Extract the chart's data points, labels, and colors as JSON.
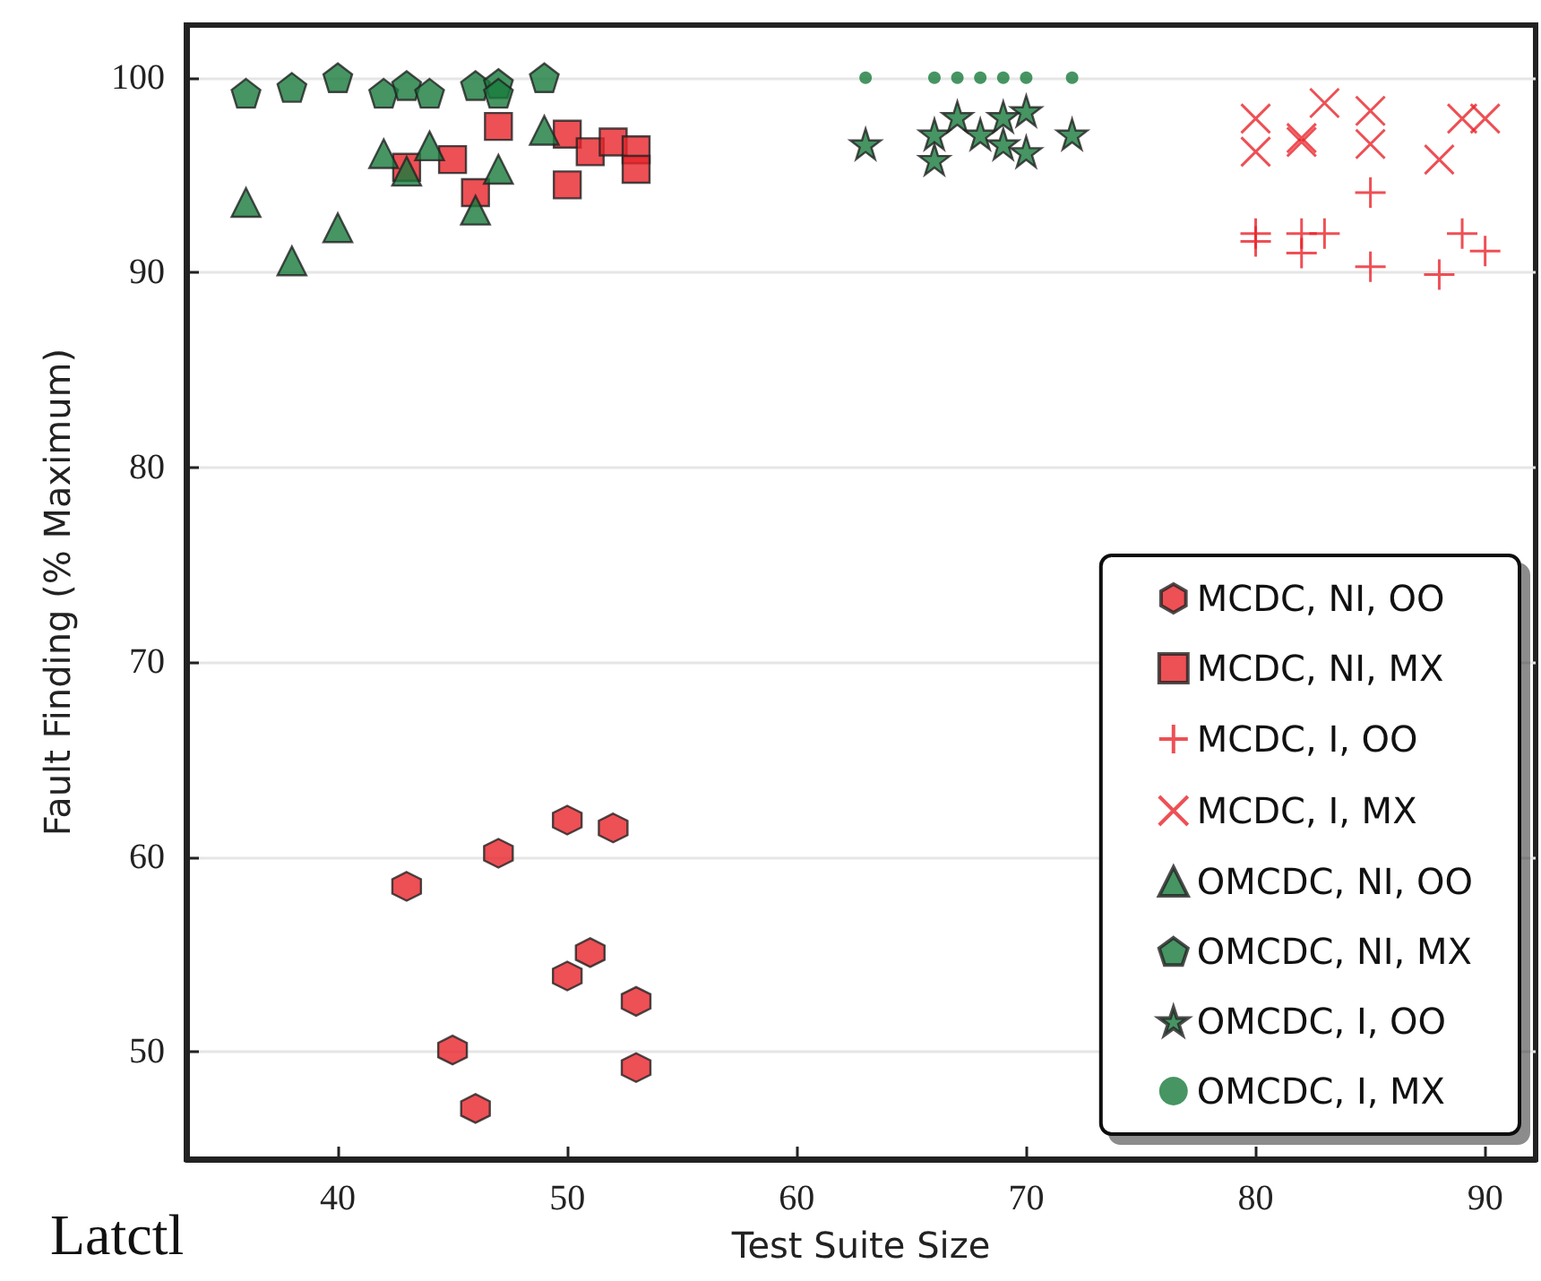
{
  "chart_data": {
    "type": "scatter",
    "xlabel": "Test Suite Size",
    "ylabel": "Fault Finding (% Maximum)",
    "annotations": [
      "Latctl"
    ],
    "xlim": [
      33.4,
      92.2
    ],
    "xticks": [
      40,
      50,
      60,
      70,
      80,
      90
    ],
    "ylim": [
      44.5,
      102.7
    ],
    "yticks": [
      50,
      60,
      70,
      80,
      90,
      100
    ],
    "grid": "y",
    "legend": "bottom right",
    "series": [
      {
        "name": "MCDC, NI, OO",
        "color": "#e8242a",
        "x": [
          43,
          47,
          50,
          52,
          51,
          50,
          53,
          45,
          53,
          46
        ],
        "values": [
          58.5,
          60.2,
          61.9,
          61.5,
          55.1,
          53.9,
          52.6,
          50.1,
          49.2,
          47.1
        ]
      },
      {
        "name": "MCDC, NI, MX",
        "color": "#e8242a",
        "marker": "square",
        "x": [
          43,
          45,
          46,
          47,
          50,
          50,
          51,
          52,
          53,
          53
        ],
        "values": [
          95.4,
          95.8,
          94.1,
          97.5,
          97.1,
          94.5,
          96.2,
          96.7,
          96.3,
          95.3
        ]
      },
      {
        "name": "MCDC, I, OO",
        "color": "#e8242a",
        "marker": "plus",
        "x": [
          80,
          80,
          82,
          82,
          83,
          85,
          85,
          88,
          89,
          90
        ],
        "values": [
          92.0,
          91.6,
          92.0,
          91.0,
          92.0,
          94.1,
          90.3,
          89.9,
          92.0,
          91.1
        ]
      },
      {
        "name": "MCDC, I, MX",
        "color": "#e8242a",
        "marker": "x",
        "x": [
          80,
          80,
          82,
          82,
          83,
          85,
          85,
          88,
          89,
          90
        ],
        "values": [
          97.9,
          96.2,
          96.9,
          96.7,
          98.7,
          98.3,
          96.6,
          95.8,
          97.9,
          97.9
        ]
      },
      {
        "name": "OMCDC, NI, OO",
        "color": "#187a3c",
        "marker": "triangle",
        "x": [
          36,
          38,
          40,
          42,
          43,
          44,
          46,
          47,
          49
        ],
        "values": [
          93.6,
          90.6,
          92.3,
          96.1,
          95.2,
          96.5,
          93.2,
          95.3,
          97.3
        ]
      },
      {
        "name": "OMCDC, NI, MX",
        "color": "#187a3c",
        "x": [
          36,
          38,
          40,
          42,
          43,
          44,
          46,
          47,
          47,
          49
        ],
        "values": [
          99.2,
          99.5,
          100,
          99.2,
          99.6,
          99.2,
          99.6,
          99.7,
          99.2,
          100
        ]
      },
      {
        "name": "OMCDC, I, OO",
        "color": "#187a3c",
        "marker": "star",
        "x": [
          63,
          66,
          66,
          67,
          68,
          69,
          69,
          70,
          70,
          72
        ],
        "values": [
          96.6,
          97.1,
          95.8,
          98.0,
          97.1,
          98.0,
          96.6,
          98.3,
          96.2,
          97.1
        ]
      },
      {
        "name": "OMCDC, I, MX",
        "color": "#187a3c",
        "marker": "circle",
        "x": [
          63,
          66,
          67,
          68,
          69,
          70,
          72
        ],
        "values": [
          100,
          100,
          100,
          100,
          100,
          100,
          100
        ]
      }
    ]
  }
}
